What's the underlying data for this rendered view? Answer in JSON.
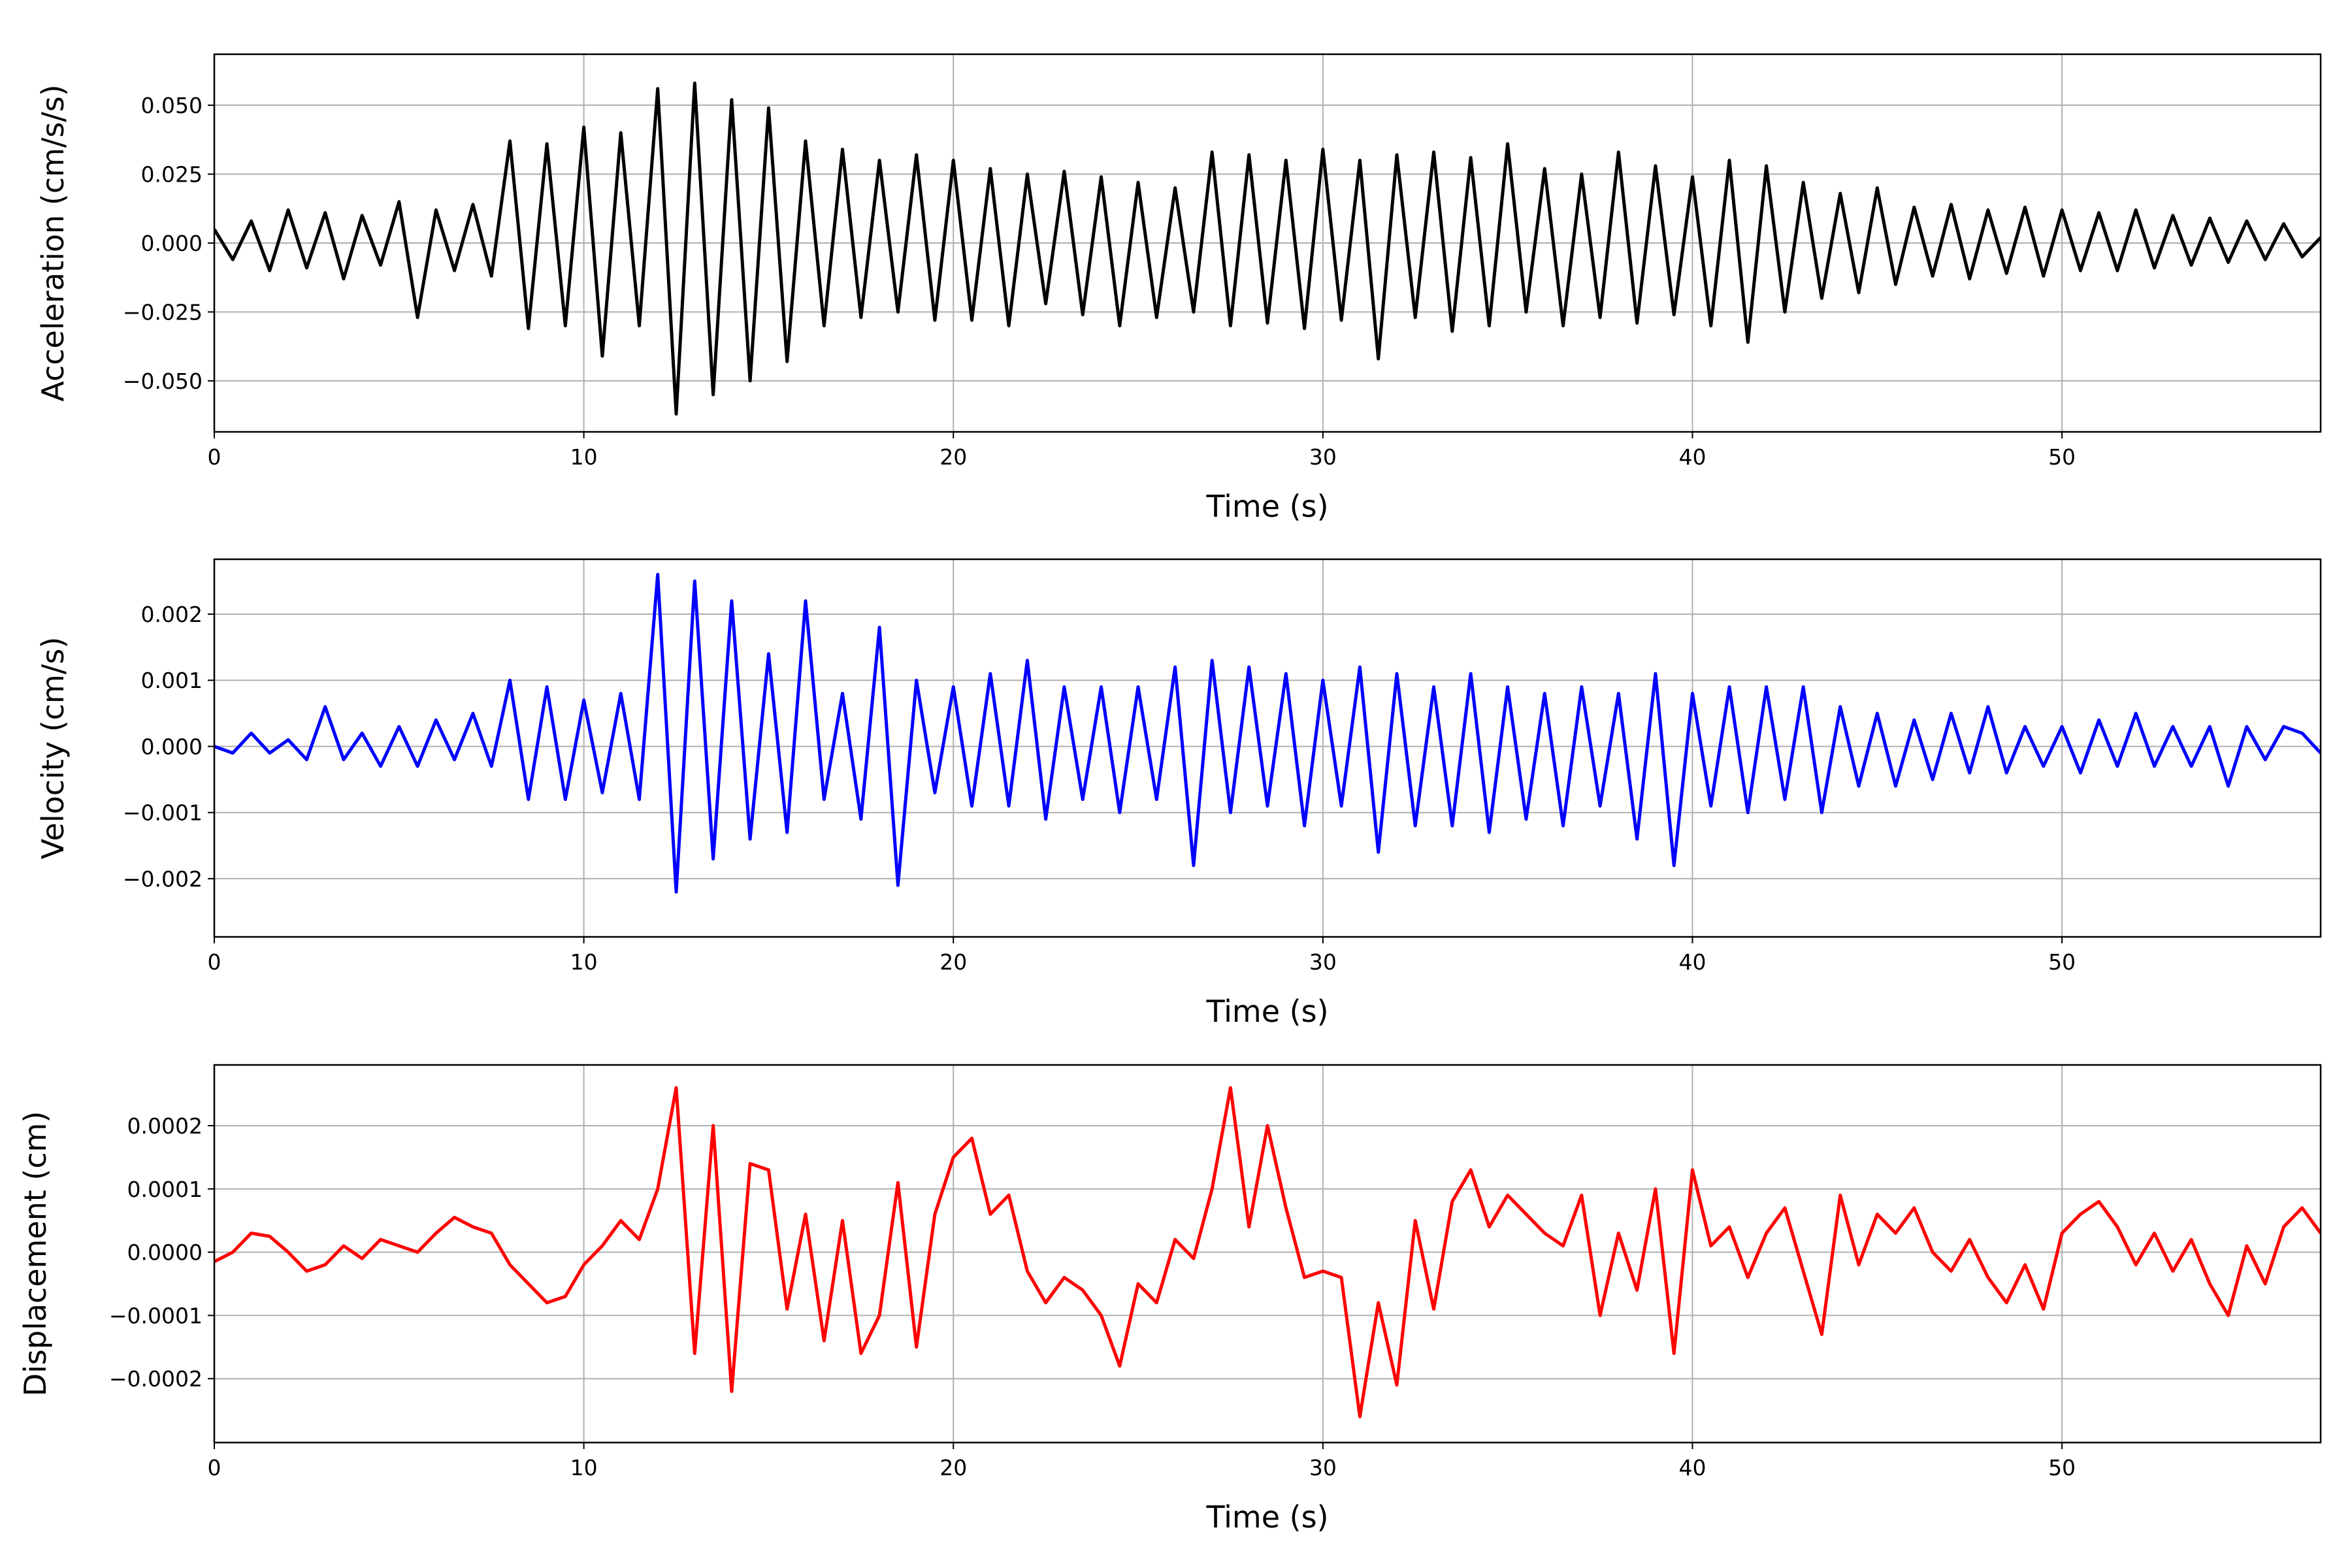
{
  "chart_data": [
    {
      "type": "line",
      "xlabel": "Time (s)",
      "ylabel": "Acceleration (cm/s/s)",
      "grid": true,
      "x": [
        0,
        0.5,
        1,
        1.5,
        2,
        2.5,
        3,
        3.5,
        4,
        4.5,
        5,
        5.5,
        6,
        6.5,
        7,
        7.5,
        8,
        8.5,
        9,
        9.5,
        10,
        10.5,
        11,
        11.5,
        12,
        12.5,
        13,
        13.5,
        14,
        14.5,
        15,
        15.5,
        16,
        16.5,
        17,
        17.5,
        18,
        18.5,
        19,
        19.5,
        20,
        20.5,
        21,
        21.5,
        22,
        22.5,
        23,
        23.5,
        24,
        24.5,
        25,
        25.5,
        26,
        26.5,
        27,
        27.5,
        28,
        28.5,
        29,
        29.5,
        30,
        30.5,
        31,
        31.5,
        32,
        32.5,
        33,
        33.5,
        34,
        34.5,
        35,
        35.5,
        36,
        36.5,
        37,
        37.5,
        38,
        38.5,
        39,
        39.5,
        40,
        40.5,
        41,
        41.5,
        42,
        42.5,
        43,
        43.5,
        44,
        44.5,
        45,
        45.5,
        46,
        46.5,
        47,
        47.5,
        48,
        48.5,
        49,
        49.5,
        50,
        50.5,
        51,
        51.5,
        52,
        52.5,
        53,
        53.5,
        54,
        54.5,
        55,
        55.5,
        56,
        56.5,
        57
      ],
      "series": [
        {
          "color": "#000000",
          "values": [
            0.005,
            -0.006,
            0.008,
            -0.01,
            0.012,
            -0.009,
            0.011,
            -0.013,
            0.01,
            -0.008,
            0.015,
            -0.027,
            0.012,
            -0.01,
            0.014,
            -0.012,
            0.037,
            -0.031,
            0.036,
            -0.03,
            0.042,
            -0.041,
            0.04,
            -0.03,
            0.056,
            -0.062,
            0.058,
            -0.055,
            0.052,
            -0.05,
            0.049,
            -0.043,
            0.037,
            -0.03,
            0.034,
            -0.027,
            0.03,
            -0.025,
            0.032,
            -0.028,
            0.03,
            -0.028,
            0.027,
            -0.03,
            0.025,
            -0.022,
            0.026,
            -0.026,
            0.024,
            -0.03,
            0.022,
            -0.027,
            0.02,
            -0.025,
            0.033,
            -0.03,
            0.032,
            -0.029,
            0.03,
            -0.031,
            0.034,
            -0.028,
            0.03,
            -0.042,
            0.032,
            -0.027,
            0.033,
            -0.032,
            0.031,
            -0.03,
            0.036,
            -0.025,
            0.027,
            -0.03,
            0.025,
            -0.027,
            0.033,
            -0.029,
            0.028,
            -0.026,
            0.024,
            -0.03,
            0.03,
            -0.036,
            0.028,
            -0.025,
            0.022,
            -0.02,
            0.018,
            -0.018,
            0.02,
            -0.015,
            0.013,
            -0.012,
            0.014,
            -0.013,
            0.012,
            -0.011,
            0.013,
            -0.012,
            0.012,
            -0.01,
            0.011,
            -0.01,
            0.012,
            -0.009,
            0.01,
            -0.008,
            0.009,
            -0.007,
            0.008,
            -0.006,
            0.007,
            -0.005,
            0.002
          ]
        }
      ],
      "xlim": [
        0,
        57
      ],
      "xticks": [
        0,
        10,
        20,
        30,
        40,
        50
      ],
      "ylim": [
        -0.0685,
        0.0685
      ],
      "yticks": [
        {
          "value": -0.05,
          "label": "−0.050"
        },
        {
          "value": -0.025,
          "label": "−0.025"
        },
        {
          "value": 0,
          "label": "0.000"
        },
        {
          "value": 0.025,
          "label": "0.025"
        },
        {
          "value": 0.05,
          "label": "0.050"
        }
      ]
    },
    {
      "type": "line",
      "xlabel": "Time (s)",
      "ylabel": "Velocity (cm/s)",
      "grid": true,
      "x": [
        0,
        0.5,
        1,
        1.5,
        2,
        2.5,
        3,
        3.5,
        4,
        4.5,
        5,
        5.5,
        6,
        6.5,
        7,
        7.5,
        8,
        8.5,
        9,
        9.5,
        10,
        10.5,
        11,
        11.5,
        12,
        12.5,
        13,
        13.5,
        14,
        14.5,
        15,
        15.5,
        16,
        16.5,
        17,
        17.5,
        18,
        18.5,
        19,
        19.5,
        20,
        20.5,
        21,
        21.5,
        22,
        22.5,
        23,
        23.5,
        24,
        24.5,
        25,
        25.5,
        26,
        26.5,
        27,
        27.5,
        28,
        28.5,
        29,
        29.5,
        30,
        30.5,
        31,
        31.5,
        32,
        32.5,
        33,
        33.5,
        34,
        34.5,
        35,
        35.5,
        36,
        36.5,
        37,
        37.5,
        38,
        38.5,
        39,
        39.5,
        40,
        40.5,
        41,
        41.5,
        42,
        42.5,
        43,
        43.5,
        44,
        44.5,
        45,
        45.5,
        46,
        46.5,
        47,
        47.5,
        48,
        48.5,
        49,
        49.5,
        50,
        50.5,
        51,
        51.5,
        52,
        52.5,
        53,
        53.5,
        54,
        54.5,
        55,
        55.5,
        56,
        56.5,
        57
      ],
      "series": [
        {
          "color": "#0000ff",
          "values": [
            0,
            -0.0001,
            0.0002,
            -0.0001,
            0.0001,
            -0.0002,
            0.0006,
            -0.0002,
            0.0002,
            -0.0003,
            0.0003,
            -0.0003,
            0.0004,
            -0.0002,
            0.0005,
            -0.0003,
            0.001,
            -0.0008,
            0.0009,
            -0.0008,
            0.0007,
            -0.0007,
            0.0008,
            -0.0008,
            0.0026,
            -0.0022,
            0.0025,
            -0.0017,
            0.0022,
            -0.0014,
            0.0014,
            -0.0013,
            0.0022,
            -0.0008,
            0.0008,
            -0.0011,
            0.0018,
            -0.0021,
            0.001,
            -0.0007,
            0.0009,
            -0.0009,
            0.0011,
            -0.0009,
            0.0013,
            -0.0011,
            0.0009,
            -0.0008,
            0.0009,
            -0.001,
            0.0009,
            -0.0008,
            0.0012,
            -0.0018,
            0.0013,
            -0.001,
            0.0012,
            -0.0009,
            0.0011,
            -0.0012,
            0.001,
            -0.0009,
            0.0012,
            -0.0016,
            0.0011,
            -0.0012,
            0.0009,
            -0.0012,
            0.0011,
            -0.0013,
            0.0009,
            -0.0011,
            0.0008,
            -0.0012,
            0.0009,
            -0.0009,
            0.0008,
            -0.0014,
            0.0011,
            -0.0018,
            0.0008,
            -0.0009,
            0.0009,
            -0.001,
            0.0009,
            -0.0008,
            0.0009,
            -0.001,
            0.0006,
            -0.0006,
            0.0005,
            -0.0006,
            0.0004,
            -0.0005,
            0.0005,
            -0.0004,
            0.0006,
            -0.0004,
            0.0003,
            -0.0003,
            0.0003,
            -0.0004,
            0.0004,
            -0.0003,
            0.0005,
            -0.0003,
            0.0003,
            -0.0003,
            0.0003,
            -0.0006,
            0.0003,
            -0.0002,
            0.0003,
            0.0002,
            -0.0001
          ]
        }
      ],
      "xlim": [
        0,
        57
      ],
      "xticks": [
        0,
        10,
        20,
        30,
        40,
        50
      ],
      "ylim": [
        -0.00288,
        0.00283
      ],
      "yticks": [
        {
          "value": -0.002,
          "label": "−0.002"
        },
        {
          "value": -0.001,
          "label": "−0.001"
        },
        {
          "value": 0,
          "label": "0.000"
        },
        {
          "value": 0.001,
          "label": "0.001"
        },
        {
          "value": 0.002,
          "label": "0.002"
        }
      ]
    },
    {
      "type": "line",
      "xlabel": "Time (s)",
      "ylabel": "Displacement (cm)",
      "grid": true,
      "x": [
        0,
        0.5,
        1,
        1.5,
        2,
        2.5,
        3,
        3.5,
        4,
        4.5,
        5,
        5.5,
        6,
        6.5,
        7,
        7.5,
        8,
        8.5,
        9,
        9.5,
        10,
        10.5,
        11,
        11.5,
        12,
        12.5,
        13,
        13.5,
        14,
        14.5,
        15,
        15.5,
        16,
        16.5,
        17,
        17.5,
        18,
        18.5,
        19,
        19.5,
        20,
        20.5,
        21,
        21.5,
        22,
        22.5,
        23,
        23.5,
        24,
        24.5,
        25,
        25.5,
        26,
        26.5,
        27,
        27.5,
        28,
        28.5,
        29,
        29.5,
        30,
        30.5,
        31,
        31.5,
        32,
        32.5,
        33,
        33.5,
        34,
        34.5,
        35,
        35.5,
        36,
        36.5,
        37,
        37.5,
        38,
        38.5,
        39,
        39.5,
        40,
        40.5,
        41,
        41.5,
        42,
        42.5,
        43,
        43.5,
        44,
        44.5,
        45,
        45.5,
        46,
        46.5,
        47,
        47.5,
        48,
        48.5,
        49,
        49.5,
        50,
        50.5,
        51,
        51.5,
        52,
        52.5,
        53,
        53.5,
        54,
        54.5,
        55,
        55.5,
        56,
        56.5,
        57
      ],
      "series": [
        {
          "color": "#ff0000",
          "values": [
            -1.5e-05,
            0,
            3e-05,
            2.5e-05,
            0,
            -3e-05,
            -2e-05,
            1e-05,
            -1e-05,
            2e-05,
            1e-05,
            0,
            3e-05,
            5.5e-05,
            4e-05,
            3e-05,
            -2e-05,
            -5e-05,
            -8e-05,
            -7e-05,
            -2e-05,
            1e-05,
            5e-05,
            2e-05,
            0.0001,
            0.00026,
            -0.00016,
            0.0002,
            -0.00022,
            0.00014,
            0.00013,
            -9e-05,
            6e-05,
            -0.00014,
            5e-05,
            -0.00016,
            -0.0001,
            0.00011,
            -0.00015,
            6e-05,
            0.00015,
            0.00018,
            6e-05,
            9e-05,
            -3e-05,
            -8e-05,
            -4e-05,
            -6e-05,
            -0.0001,
            -0.00018,
            -5e-05,
            -8e-05,
            2e-05,
            -1e-05,
            0.0001,
            0.00026,
            4e-05,
            0.0002,
            7e-05,
            -4e-05,
            -3e-05,
            -4e-05,
            -0.00026,
            -8e-05,
            -0.00021,
            5e-05,
            -9e-05,
            8e-05,
            0.00013,
            4e-05,
            9e-05,
            6e-05,
            3e-05,
            1e-05,
            9e-05,
            -0.0001,
            3e-05,
            -6e-05,
            0.0001,
            -0.00016,
            0.00013,
            1e-05,
            4e-05,
            -4e-05,
            3e-05,
            7e-05,
            -3e-05,
            -0.00013,
            9e-05,
            -2e-05,
            6e-05,
            3e-05,
            7e-05,
            0,
            -3e-05,
            2e-05,
            -4e-05,
            -8e-05,
            -2e-05,
            -9e-05,
            3e-05,
            6e-05,
            8e-05,
            4e-05,
            -2e-05,
            3e-05,
            -3e-05,
            2e-05,
            -5e-05,
            -0.0001,
            1e-05,
            -5e-05,
            4e-05,
            7e-05,
            3e-05
          ]
        }
      ],
      "xlim": [
        0,
        57
      ],
      "xticks": [
        0,
        10,
        20,
        30,
        40,
        50
      ],
      "ylim": [
        -0.000301,
        0.000296
      ],
      "yticks": [
        {
          "value": -0.0002,
          "label": "−0.0002"
        },
        {
          "value": -0.0001,
          "label": "−0.0001"
        },
        {
          "value": 0,
          "label": "0.0000"
        },
        {
          "value": 0.0001,
          "label": "0.0001"
        },
        {
          "value": 0.0002,
          "label": "0.0002"
        }
      ]
    }
  ]
}
